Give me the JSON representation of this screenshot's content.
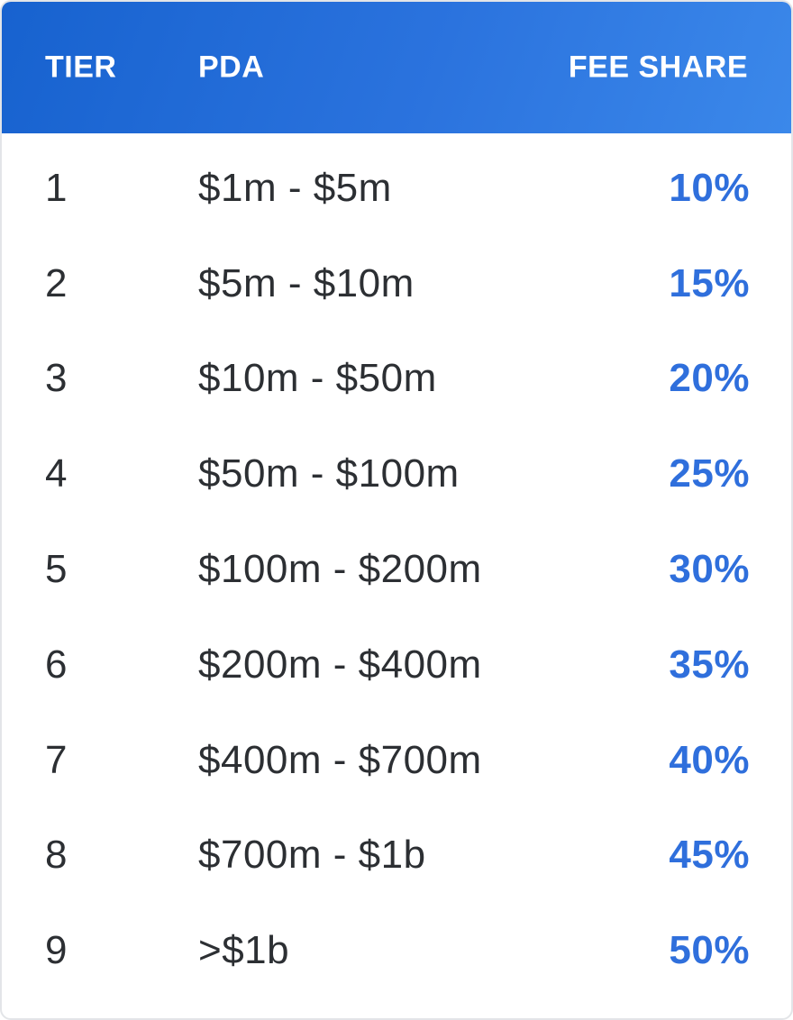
{
  "table": {
    "headers": {
      "tier": "TIER",
      "pda": "PDA",
      "fee_share": "FEE SHARE"
    },
    "rows": [
      {
        "tier": "1",
        "pda": "$1m - $5m",
        "fee_share": "10%"
      },
      {
        "tier": "2",
        "pda": "$5m - $10m",
        "fee_share": "15%"
      },
      {
        "tier": "3",
        "pda": "$10m - $50m",
        "fee_share": "20%"
      },
      {
        "tier": "4",
        "pda": "$50m - $100m",
        "fee_share": "25%"
      },
      {
        "tier": "5",
        "pda": "$100m - $200m",
        "fee_share": "30%"
      },
      {
        "tier": "6",
        "pda": "$200m - $400m",
        "fee_share": "35%"
      },
      {
        "tier": "7",
        "pda": "$400m - $700m",
        "fee_share": "40%"
      },
      {
        "tier": "8",
        "pda": "$700m - $1b",
        "fee_share": "45%"
      },
      {
        "tier": "9",
        "pda": ">$1b",
        "fee_share": "50%"
      }
    ]
  },
  "colors": {
    "header_gradient_start": "#1762cf",
    "header_gradient_end": "#3b88ea",
    "fee_text": "#2f6fdc",
    "body_text": "#2c2f33"
  }
}
